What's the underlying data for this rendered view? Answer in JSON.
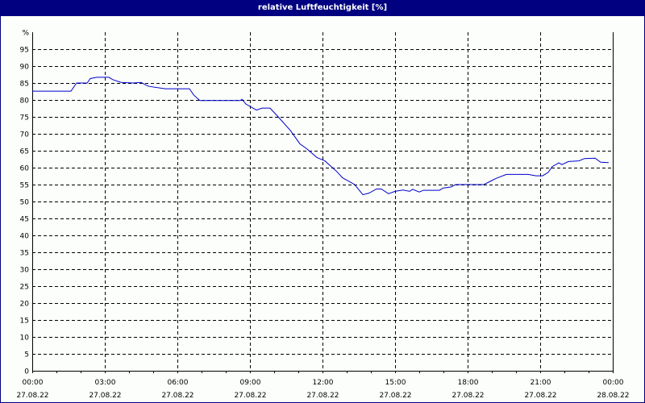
{
  "window": {
    "title": "relative Luftfeuchtigkeit [%]"
  },
  "colors": {
    "title_bar": "#000080",
    "line": "#0000cc",
    "grid": "#000000",
    "background": "#fbfefb"
  },
  "chart_data": {
    "type": "line",
    "title": "relative Luftfeuchtigkeit [%]",
    "xlabel": "",
    "ylabel": "%",
    "ylim": [
      0,
      100
    ],
    "xlim": [
      "27.08.22 00:00",
      "28.08.22 00:00"
    ],
    "grid": true,
    "grid_style": "dashed",
    "yticks": [
      0,
      5,
      10,
      15,
      20,
      25,
      30,
      35,
      40,
      45,
      50,
      55,
      60,
      65,
      70,
      75,
      80,
      85,
      90,
      95
    ],
    "y_unit_label": "%",
    "xticks": [
      {
        "time": "00:00",
        "date": "27.08.22"
      },
      {
        "time": "03:00",
        "date": "27.08.22"
      },
      {
        "time": "06:00",
        "date": "27.08.22"
      },
      {
        "time": "09:00",
        "date": "27.08.22"
      },
      {
        "time": "12:00",
        "date": "27.08.22"
      },
      {
        "time": "15:00",
        "date": "27.08.22"
      },
      {
        "time": "18:00",
        "date": "27.08.22"
      },
      {
        "time": "21:00",
        "date": "27.08.22"
      },
      {
        "time": "00:00",
        "date": "28.08.22"
      }
    ],
    "series": [
      {
        "name": "relative Luftfeuchtigkeit",
        "x_hours": [
          0,
          1.6,
          1.83,
          2.27,
          2.4,
          2.67,
          3.17,
          3.33,
          3.67,
          4.17,
          4.5,
          4.67,
          4.83,
          5.5,
          6.5,
          6.67,
          6.93,
          8.6,
          8.67,
          8.83,
          9.27,
          9.5,
          9.83,
          10.17,
          10.67,
          11.07,
          11.33,
          11.77,
          12.1,
          12.33,
          12.57,
          12.83,
          13.33,
          13.67,
          13.93,
          14.23,
          14.43,
          14.73,
          15.0,
          15.33,
          15.6,
          15.73,
          16.0,
          16.17,
          16.83,
          17.0,
          17.33,
          17.5,
          18.67,
          19.0,
          19.17,
          19.6,
          20.5,
          20.83,
          21.1,
          21.33,
          21.5,
          21.77,
          21.9,
          22.17,
          22.6,
          22.83,
          23.27,
          23.5,
          23.83
        ],
        "values": [
          82.6,
          82.6,
          85.0,
          85.0,
          86.3,
          86.7,
          86.7,
          86.0,
          85.2,
          85.0,
          85.2,
          84.5,
          84.0,
          83.3,
          83.3,
          81.5,
          79.8,
          79.8,
          80.2,
          78.8,
          77.0,
          77.6,
          77.6,
          75.0,
          71.0,
          67.0,
          65.7,
          63.0,
          62.0,
          60.5,
          59.0,
          57.0,
          55.0,
          52.0,
          52.5,
          53.7,
          53.7,
          52.3,
          53.0,
          53.4,
          53.0,
          53.6,
          52.8,
          53.3,
          53.3,
          54.0,
          54.3,
          55.0,
          55.0,
          56.2,
          56.8,
          58.0,
          58.0,
          57.6,
          57.6,
          58.6,
          60.3,
          61.4,
          60.9,
          61.8,
          62.0,
          62.7,
          62.8,
          61.6,
          61.5
        ]
      }
    ]
  }
}
